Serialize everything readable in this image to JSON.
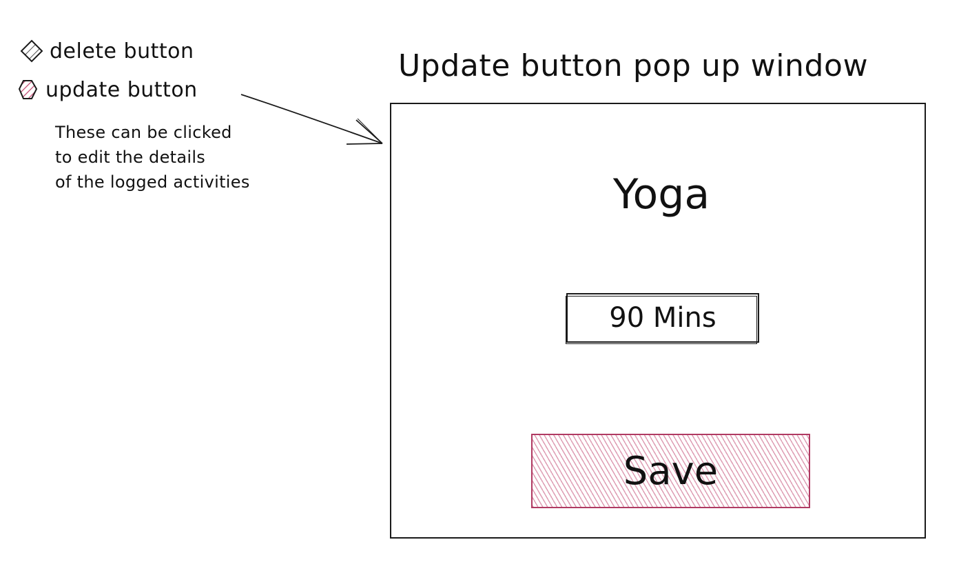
{
  "legend": {
    "delete_label": "delete button",
    "update_label": "update button",
    "note_lines": [
      "These can be clicked",
      "to edit the details",
      "of the logged activities"
    ],
    "delete_icon": "diamond-hatch-icon",
    "update_icon": "hexagon-hatch-icon",
    "update_color": "#c44e76"
  },
  "popup": {
    "title": "Update button pop up window",
    "activity_name": "Yoga",
    "duration_value": "90 Mins",
    "save_label": "Save",
    "save_color": "#c44e76"
  }
}
